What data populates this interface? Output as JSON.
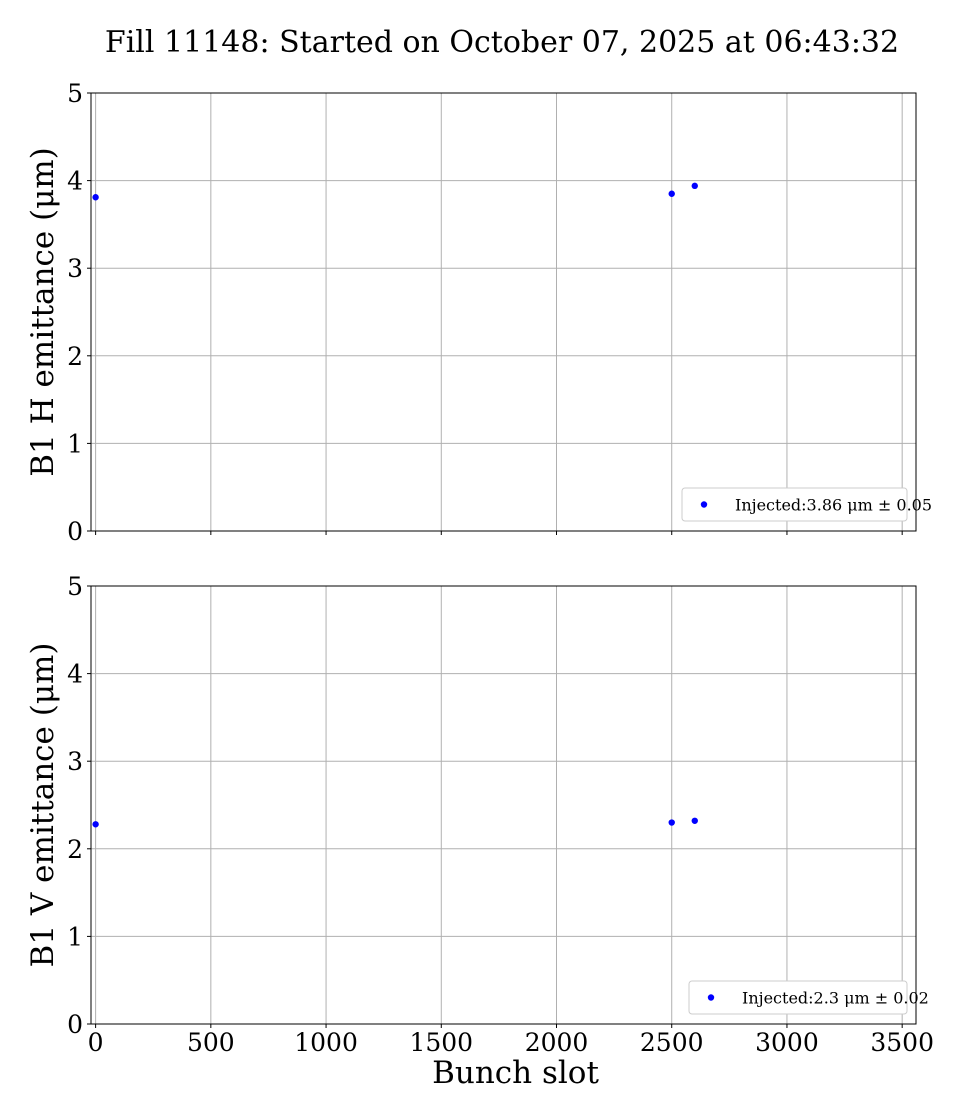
{
  "title": "Fill 11148: Started on October 07, 2025 at 06:43:32",
  "colors": {
    "marker": "#0000ff",
    "grid": "#b0b0b0"
  },
  "chart_data": [
    {
      "type": "scatter",
      "ylabel": "B1 H emittance (μm)",
      "xlabel": "",
      "xlim": [
        -20,
        3560
      ],
      "ylim": [
        0,
        5
      ],
      "xticks": [
        0,
        500,
        1000,
        1500,
        2000,
        2500,
        3000,
        3500
      ],
      "yticks": [
        0,
        1,
        2,
        3,
        4,
        5
      ],
      "show_x_tick_labels": false,
      "grid": true,
      "legend_position": "lower right",
      "series": [
        {
          "name": "Injected:3.86 μm ± 0.05",
          "x": [
            0,
            2500,
            2600
          ],
          "y": [
            3.81,
            3.85,
            3.94
          ]
        }
      ]
    },
    {
      "type": "scatter",
      "ylabel": "B1 V emittance (μm)",
      "xlabel": "Bunch slot",
      "xlim": [
        -20,
        3560
      ],
      "ylim": [
        0,
        5
      ],
      "xticks": [
        0,
        500,
        1000,
        1500,
        2000,
        2500,
        3000,
        3500
      ],
      "yticks": [
        0,
        1,
        2,
        3,
        4,
        5
      ],
      "show_x_tick_labels": true,
      "grid": true,
      "legend_position": "lower right",
      "series": [
        {
          "name": "Injected:2.3 μm ± 0.02",
          "x": [
            0,
            2500,
            2600
          ],
          "y": [
            2.28,
            2.3,
            2.32
          ]
        }
      ]
    }
  ]
}
